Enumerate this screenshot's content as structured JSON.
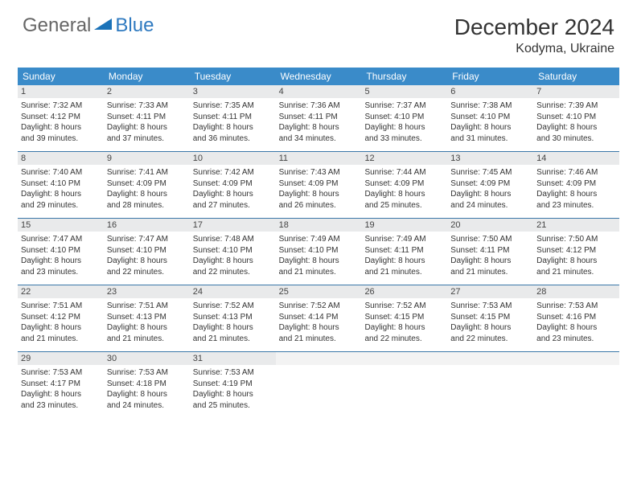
{
  "brand": {
    "general": "General",
    "blue": "Blue"
  },
  "title": "December 2024",
  "location": "Kodyma, Ukraine",
  "colors": {
    "header_bg": "#3a8bc9",
    "header_text": "#ffffff",
    "daynum_bg": "#e9eaeb",
    "week_border": "#3a77a8",
    "logo_accent": "#2f7ac0",
    "text": "#333333"
  },
  "weekdays": [
    "Sunday",
    "Monday",
    "Tuesday",
    "Wednesday",
    "Thursday",
    "Friday",
    "Saturday"
  ],
  "days": [
    {
      "n": "1",
      "sr": "Sunrise: 7:32 AM",
      "ss": "Sunset: 4:12 PM",
      "d1": "Daylight: 8 hours",
      "d2": "and 39 minutes."
    },
    {
      "n": "2",
      "sr": "Sunrise: 7:33 AM",
      "ss": "Sunset: 4:11 PM",
      "d1": "Daylight: 8 hours",
      "d2": "and 37 minutes."
    },
    {
      "n": "3",
      "sr": "Sunrise: 7:35 AM",
      "ss": "Sunset: 4:11 PM",
      "d1": "Daylight: 8 hours",
      "d2": "and 36 minutes."
    },
    {
      "n": "4",
      "sr": "Sunrise: 7:36 AM",
      "ss": "Sunset: 4:11 PM",
      "d1": "Daylight: 8 hours",
      "d2": "and 34 minutes."
    },
    {
      "n": "5",
      "sr": "Sunrise: 7:37 AM",
      "ss": "Sunset: 4:10 PM",
      "d1": "Daylight: 8 hours",
      "d2": "and 33 minutes."
    },
    {
      "n": "6",
      "sr": "Sunrise: 7:38 AM",
      "ss": "Sunset: 4:10 PM",
      "d1": "Daylight: 8 hours",
      "d2": "and 31 minutes."
    },
    {
      "n": "7",
      "sr": "Sunrise: 7:39 AM",
      "ss": "Sunset: 4:10 PM",
      "d1": "Daylight: 8 hours",
      "d2": "and 30 minutes."
    },
    {
      "n": "8",
      "sr": "Sunrise: 7:40 AM",
      "ss": "Sunset: 4:10 PM",
      "d1": "Daylight: 8 hours",
      "d2": "and 29 minutes."
    },
    {
      "n": "9",
      "sr": "Sunrise: 7:41 AM",
      "ss": "Sunset: 4:09 PM",
      "d1": "Daylight: 8 hours",
      "d2": "and 28 minutes."
    },
    {
      "n": "10",
      "sr": "Sunrise: 7:42 AM",
      "ss": "Sunset: 4:09 PM",
      "d1": "Daylight: 8 hours",
      "d2": "and 27 minutes."
    },
    {
      "n": "11",
      "sr": "Sunrise: 7:43 AM",
      "ss": "Sunset: 4:09 PM",
      "d1": "Daylight: 8 hours",
      "d2": "and 26 minutes."
    },
    {
      "n": "12",
      "sr": "Sunrise: 7:44 AM",
      "ss": "Sunset: 4:09 PM",
      "d1": "Daylight: 8 hours",
      "d2": "and 25 minutes."
    },
    {
      "n": "13",
      "sr": "Sunrise: 7:45 AM",
      "ss": "Sunset: 4:09 PM",
      "d1": "Daylight: 8 hours",
      "d2": "and 24 minutes."
    },
    {
      "n": "14",
      "sr": "Sunrise: 7:46 AM",
      "ss": "Sunset: 4:09 PM",
      "d1": "Daylight: 8 hours",
      "d2": "and 23 minutes."
    },
    {
      "n": "15",
      "sr": "Sunrise: 7:47 AM",
      "ss": "Sunset: 4:10 PM",
      "d1": "Daylight: 8 hours",
      "d2": "and 23 minutes."
    },
    {
      "n": "16",
      "sr": "Sunrise: 7:47 AM",
      "ss": "Sunset: 4:10 PM",
      "d1": "Daylight: 8 hours",
      "d2": "and 22 minutes."
    },
    {
      "n": "17",
      "sr": "Sunrise: 7:48 AM",
      "ss": "Sunset: 4:10 PM",
      "d1": "Daylight: 8 hours",
      "d2": "and 22 minutes."
    },
    {
      "n": "18",
      "sr": "Sunrise: 7:49 AM",
      "ss": "Sunset: 4:10 PM",
      "d1": "Daylight: 8 hours",
      "d2": "and 21 minutes."
    },
    {
      "n": "19",
      "sr": "Sunrise: 7:49 AM",
      "ss": "Sunset: 4:11 PM",
      "d1": "Daylight: 8 hours",
      "d2": "and 21 minutes."
    },
    {
      "n": "20",
      "sr": "Sunrise: 7:50 AM",
      "ss": "Sunset: 4:11 PM",
      "d1": "Daylight: 8 hours",
      "d2": "and 21 minutes."
    },
    {
      "n": "21",
      "sr": "Sunrise: 7:50 AM",
      "ss": "Sunset: 4:12 PM",
      "d1": "Daylight: 8 hours",
      "d2": "and 21 minutes."
    },
    {
      "n": "22",
      "sr": "Sunrise: 7:51 AM",
      "ss": "Sunset: 4:12 PM",
      "d1": "Daylight: 8 hours",
      "d2": "and 21 minutes."
    },
    {
      "n": "23",
      "sr": "Sunrise: 7:51 AM",
      "ss": "Sunset: 4:13 PM",
      "d1": "Daylight: 8 hours",
      "d2": "and 21 minutes."
    },
    {
      "n": "24",
      "sr": "Sunrise: 7:52 AM",
      "ss": "Sunset: 4:13 PM",
      "d1": "Daylight: 8 hours",
      "d2": "and 21 minutes."
    },
    {
      "n": "25",
      "sr": "Sunrise: 7:52 AM",
      "ss": "Sunset: 4:14 PM",
      "d1": "Daylight: 8 hours",
      "d2": "and 21 minutes."
    },
    {
      "n": "26",
      "sr": "Sunrise: 7:52 AM",
      "ss": "Sunset: 4:15 PM",
      "d1": "Daylight: 8 hours",
      "d2": "and 22 minutes."
    },
    {
      "n": "27",
      "sr": "Sunrise: 7:53 AM",
      "ss": "Sunset: 4:15 PM",
      "d1": "Daylight: 8 hours",
      "d2": "and 22 minutes."
    },
    {
      "n": "28",
      "sr": "Sunrise: 7:53 AM",
      "ss": "Sunset: 4:16 PM",
      "d1": "Daylight: 8 hours",
      "d2": "and 23 minutes."
    },
    {
      "n": "29",
      "sr": "Sunrise: 7:53 AM",
      "ss": "Sunset: 4:17 PM",
      "d1": "Daylight: 8 hours",
      "d2": "and 23 minutes."
    },
    {
      "n": "30",
      "sr": "Sunrise: 7:53 AM",
      "ss": "Sunset: 4:18 PM",
      "d1": "Daylight: 8 hours",
      "d2": "and 24 minutes."
    },
    {
      "n": "31",
      "sr": "Sunrise: 7:53 AM",
      "ss": "Sunset: 4:19 PM",
      "d1": "Daylight: 8 hours",
      "d2": "and 25 minutes."
    }
  ]
}
